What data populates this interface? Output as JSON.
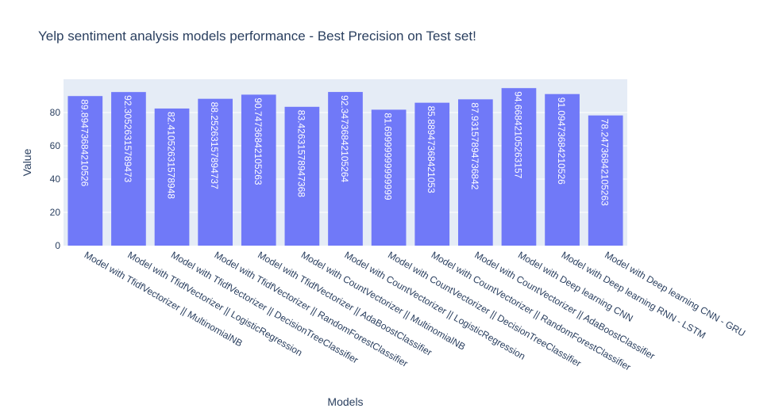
{
  "chart_data": {
    "type": "bar",
    "title": "Yelp sentiment analysis models performance - Best Precision on Test set!",
    "xlabel": "Models",
    "ylabel": "Value",
    "ylim": [
      0,
      100
    ],
    "yticks": [
      0,
      20,
      40,
      60,
      80
    ],
    "grid": true,
    "legend": "none",
    "categories": [
      "Model with TfidfVectorizer || MultinomialNB",
      "Model with TfidfVectorizer || LogisticRegression",
      "Model with TfidfVectorizer || DecisionTreeClassifier",
      "Model with TfidfVectorizer || RandomForestClassifier",
      "Model with TfidfVectorizer || AdaBoostClassifier",
      "Model with CountVectorizer || MultinomialNB",
      "Model with CountVectorizer || LogisticRegression",
      "Model with CountVectorizer || DecisionTreeClassifier",
      "Model with CountVectorizer || RandomForestClassifier",
      "Model with CountVectorizer || AdaBoostClassifier",
      "Model with Deep learning CNN",
      "Model with Deep learning RNN - LSTM",
      "Model with Deep learning CNN - GRU"
    ],
    "values": [
      89.89473684210526,
      92.30526315789473,
      82.41052631578948,
      88.25263157894737,
      90.74736842105263,
      83.42631578947368,
      92.34736842105264,
      81.69999999999999,
      85.88947368421053,
      87.93157894736842,
      94.66842105263157,
      91.09473684210526,
      78.24736842105263
    ],
    "data_labels": [
      "89.89473684210526",
      "92.30526315789473",
      "82.41052631578948",
      "88.25263157894737",
      "90.74736842105263",
      "83.42631578947368",
      "92.34736842105264",
      "81.69999999999999",
      "85.88947368421053",
      "87.93157894736842",
      "94.66842105263157",
      "91.09473684210526",
      "78.24736842105263"
    ],
    "colors": {
      "bar": "#7079f8",
      "plot_bg": "#e5ecf6",
      "grid": "#ffffff",
      "text": "#2a3f5f",
      "bar_label": "#ffffff"
    }
  }
}
